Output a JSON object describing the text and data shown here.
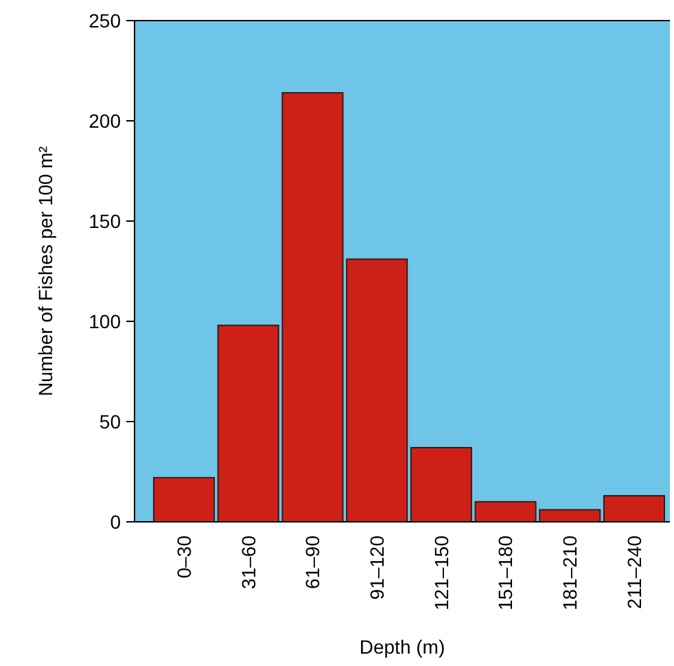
{
  "chart_data": {
    "type": "bar",
    "xlabel": "Depth (m)",
    "ylabel": "Number of Fishes per 100 m²",
    "categories": [
      "0–30",
      "31–60",
      "61–90",
      "91–120",
      "121–150",
      "151–180",
      "181–210",
      "211–240"
    ],
    "values": [
      22,
      98,
      214,
      131,
      37,
      10,
      6,
      13
    ],
    "color": "#cd2118",
    "ylim": [
      0,
      250
    ],
    "yticks": [
      0,
      50,
      100,
      150,
      200,
      250
    ],
    "grid": false
  }
}
